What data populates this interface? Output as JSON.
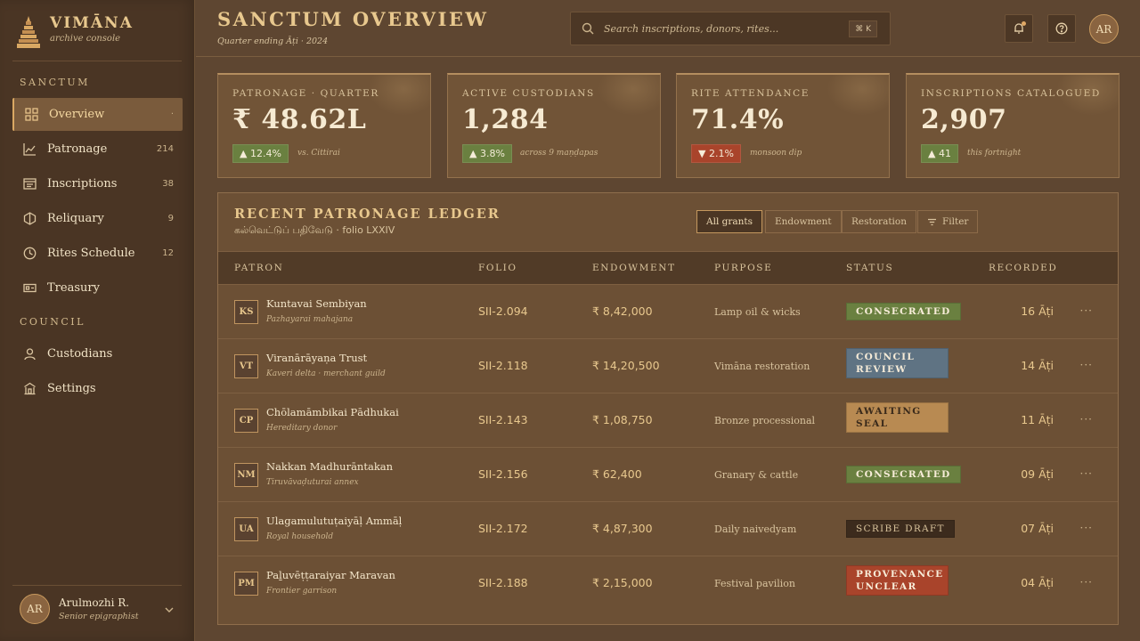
{
  "brand": {
    "name": "VIMĀNA",
    "subtitle": "archive console"
  },
  "sidebar": {
    "sections": [
      {
        "label": "SANCTUM"
      },
      {
        "label": "COUNCIL"
      }
    ],
    "items": [
      {
        "label": "Overview",
        "count": "·",
        "icon": "grid-icon",
        "active": true
      },
      {
        "label": "Patronage",
        "count": "214",
        "icon": "chart-line-icon"
      },
      {
        "label": "Inscriptions",
        "count": "38",
        "icon": "tablet-icon"
      },
      {
        "label": "Reliquary",
        "count": "9",
        "icon": "hexagon-icon"
      },
      {
        "label": "Rites Schedule",
        "count": "12",
        "icon": "clock-icon"
      },
      {
        "label": "Treasury",
        "count": "",
        "icon": "card-icon"
      },
      {
        "label": "Custodians",
        "count": "",
        "icon": "user-icon"
      },
      {
        "label": "Settings",
        "count": "",
        "icon": "temple-icon"
      }
    ],
    "user": {
      "initials": "AR",
      "name": "Arulmozhi R.",
      "role": "Senior epigraphist"
    }
  },
  "header": {
    "title": "SANCTUM OVERVIEW",
    "subtitle": "Quarter ending Āṭi · 2024",
    "search_placeholder": "Search inscriptions, donors, rites...",
    "shortcut": "⌘ K",
    "avatar_initials": "AR"
  },
  "kpis": [
    {
      "label": "PATRONAGE · QUARTER",
      "value": "₹ 48.62L",
      "delta": "▲ 12.4%",
      "direction": "up",
      "note": "vs. Cittirai"
    },
    {
      "label": "ACTIVE CUSTODIANS",
      "value": "1,284",
      "delta": "▲ 3.8%",
      "direction": "up",
      "note": "across 9 maṇḍapas"
    },
    {
      "label": "RITE ATTENDANCE",
      "value": "71.4%",
      "delta": "▼ 2.1%",
      "direction": "down",
      "note": "monsoon dip"
    },
    {
      "label": "INSCRIPTIONS CATALOGUED",
      "value": "2,907",
      "delta": "▲ 41",
      "direction": "up",
      "note": "this fortnight"
    }
  ],
  "ledger": {
    "title": "RECENT PATRONAGE LEDGER",
    "subtitle": "கல்வெட்டுப் பதிவேடு · folio LXXIV",
    "filters": [
      "All grants",
      "Endowment",
      "Restoration",
      "Filter"
    ],
    "columns": [
      "PATRON",
      "FOLIO",
      "ENDOWMENT",
      "PURPOSE",
      "STATUS",
      "RECORDED"
    ],
    "rows": [
      {
        "initials": "KS",
        "name": "Kuntavai Sembiyan",
        "sub": "Pazhayarai mahajana",
        "folio": "SII-2.094",
        "amount": "₹ 8,42,000",
        "purpose": "Lamp oil & wicks",
        "status": "CONSECRATED",
        "status_kind": "consecrated",
        "recorded": "16 Āṭi"
      },
      {
        "initials": "VT",
        "name": "Viranārāyaṇa Trust",
        "sub": "Kaveri delta · merchant guild",
        "folio": "SII-2.118",
        "amount": "₹ 14,20,500",
        "purpose": "Vimāna restoration",
        "status": "COUNCIL REVIEW",
        "status_kind": "review",
        "recorded": "14 Āṭi"
      },
      {
        "initials": "CP",
        "name": "Chōlamāmbikai Pādhukai",
        "sub": "Hereditary donor",
        "folio": "SII-2.143",
        "amount": "₹ 1,08,750",
        "purpose": "Bronze processional",
        "status": "AWAITING SEAL",
        "status_kind": "seal",
        "recorded": "11 Āṭi"
      },
      {
        "initials": "NM",
        "name": "Nakkan Madhurāntakan",
        "sub": "Tiruvāvaḍuturai annex",
        "folio": "SII-2.156",
        "amount": "₹ 62,400",
        "purpose": "Granary & cattle",
        "status": "CONSECRATED",
        "status_kind": "consecrated",
        "recorded": "09 Āṭi"
      },
      {
        "initials": "UA",
        "name": "Ulagamulutuṭaiyāḷ Ammāḷ",
        "sub": "Royal household",
        "folio": "SII-2.172",
        "amount": "₹ 4,87,300",
        "purpose": "Daily naivedyam",
        "status": "SCRIBE DRAFT",
        "status_kind": "draft",
        "recorded": "07 Āṭi"
      },
      {
        "initials": "PM",
        "name": "Paḻuvēṭṭaraiyar Maravan",
        "sub": "Frontier garrison",
        "folio": "SII-2.188",
        "amount": "₹ 2,15,000",
        "purpose": "Festival pavilion",
        "status": "PROVENANCE UNCLEAR",
        "status_kind": "unclear",
        "recorded": "04 Āṭi"
      }
    ],
    "row_action": "···"
  }
}
